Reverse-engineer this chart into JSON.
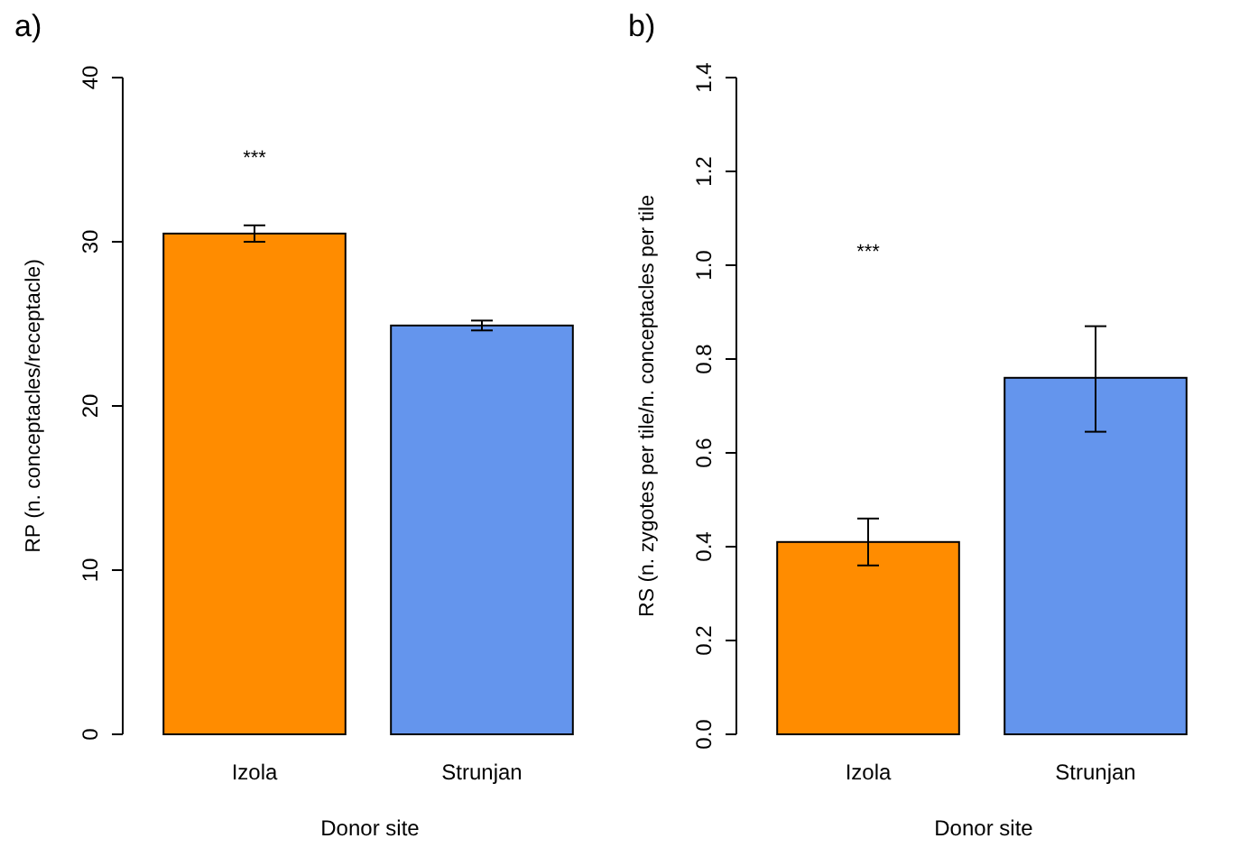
{
  "chart_data": [
    {
      "type": "bar",
      "title": "a)",
      "xlabel": "Donor site",
      "ylabel": "RP (n. conceptacles/receptacle)",
      "categories": [
        "Izola",
        "Strunjan"
      ],
      "values": [
        30.5,
        24.9
      ],
      "colors": [
        "#ff8c00",
        "#6495ed"
      ],
      "errors": [
        0.5,
        0.3
      ],
      "ylim": [
        0,
        40
      ],
      "yticks": [
        0,
        10,
        20,
        30,
        40
      ],
      "annotations": [
        "***"
      ]
    },
    {
      "type": "bar",
      "title": "b)",
      "xlabel": "Donor site",
      "ylabel": "RS (n. zygotes per tile/n. conceptacles per tile",
      "categories": [
        "Izola",
        "Strunjan"
      ],
      "values": [
        0.41,
        0.76
      ],
      "colors": [
        "#ff8c00",
        "#6495ed"
      ],
      "errors": [
        [
          0.36,
          0.46
        ],
        [
          0.645,
          0.87
        ]
      ],
      "ylim": [
        0,
        1.4
      ],
      "yticks": [
        {
          "value": 0,
          "label": "0.0"
        },
        0.2,
        0.4,
        0.6,
        0.8,
        {
          "value": 1,
          "label": "1.0"
        },
        1.2,
        1.4
      ],
      "annotations": [
        "***"
      ]
    }
  ]
}
